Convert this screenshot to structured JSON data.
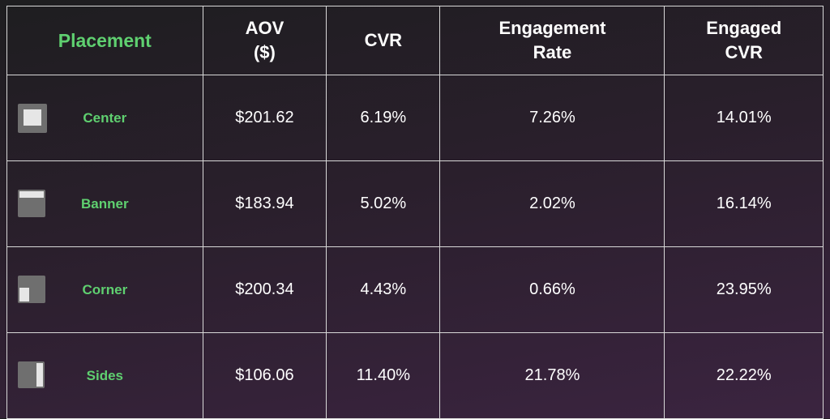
{
  "headers": [
    "Placement",
    "AOV\n($)",
    "CVR",
    "Engagement\nRate",
    "Engaged\nCVR"
  ],
  "header_lines": [
    [
      "Placement"
    ],
    [
      "AOV",
      "($)"
    ],
    [
      "CVR"
    ],
    [
      "Engagement",
      "Rate"
    ],
    [
      "Engaged",
      "CVR"
    ]
  ],
  "colors": {
    "accent": "#5fd070"
  },
  "rows": [
    {
      "placement": "Center",
      "icon": "center-placement-icon",
      "aov": "$201.62",
      "cvr": "6.19%",
      "engagement_rate": "7.26%",
      "engaged_cvr": "14.01%"
    },
    {
      "placement": "Banner",
      "icon": "banner-placement-icon",
      "aov": "$183.94",
      "cvr": "5.02%",
      "engagement_rate": "2.02%",
      "engaged_cvr": "16.14%"
    },
    {
      "placement": "Corner",
      "icon": "corner-placement-icon",
      "aov": "$200.34",
      "cvr": "4.43%",
      "engagement_rate": "0.66%",
      "engaged_cvr": "23.95%"
    },
    {
      "placement": "Sides",
      "icon": "sides-placement-icon",
      "aov": "$106.06",
      "cvr": "11.40%",
      "engagement_rate": "21.78%",
      "engaged_cvr": "22.22%"
    }
  ]
}
